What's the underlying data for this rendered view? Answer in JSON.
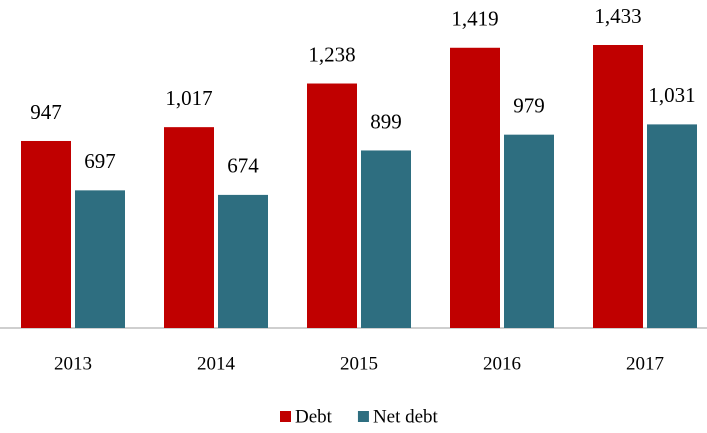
{
  "chart_data": {
    "type": "bar",
    "categories": [
      "2013",
      "2014",
      "2015",
      "2016",
      "2017"
    ],
    "series": [
      {
        "name": "Debt",
        "color": "#c00000",
        "values": [
          947,
          1017,
          1238,
          1419,
          1433
        ],
        "value_labels": [
          "947",
          "1,017",
          "1,238",
          "1,419",
          "1,433"
        ]
      },
      {
        "name": "Net debt",
        "color": "#2e6e80",
        "values": [
          697,
          674,
          899,
          979,
          1031
        ],
        "value_labels": [
          "697",
          "674",
          "899",
          "979",
          "1,031"
        ]
      }
    ],
    "legend": "bottom"
  }
}
